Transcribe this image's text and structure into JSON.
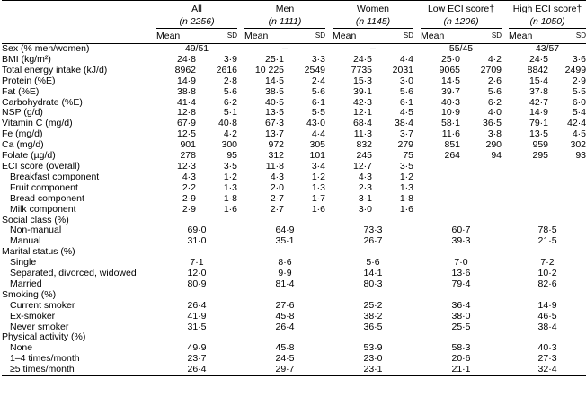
{
  "groups": [
    {
      "label": "All",
      "n": "(n 2256)"
    },
    {
      "label": "Men",
      "n": "(n 1111)"
    },
    {
      "label": "Women",
      "n": "(n 1145)"
    },
    {
      "label": "Low ECI score†",
      "n": "(n 1206)"
    },
    {
      "label": "High ECI score†",
      "n": "(n 1050)"
    }
  ],
  "stat_labels": {
    "mean": "Mean",
    "sd": "SD"
  },
  "rows": [
    {
      "type": "span",
      "label": "Sex (% men/women)",
      "values": [
        "49/51",
        "–",
        "–",
        "55/45",
        "43/57"
      ]
    },
    {
      "type": "pair",
      "label": "BMI (kg/m²)",
      "values": [
        [
          "24·8",
          "3·9"
        ],
        [
          "25·1",
          "3·3"
        ],
        [
          "24·5",
          "4·4"
        ],
        [
          "25·0",
          "4·2"
        ],
        [
          "24·5",
          "3·6"
        ]
      ]
    },
    {
      "type": "pair",
      "label": "Total energy intake (kJ/d)",
      "values": [
        [
          "8962",
          "2616"
        ],
        [
          "10 225",
          "2549"
        ],
        [
          "7735",
          "2031"
        ],
        [
          "9065",
          "2709"
        ],
        [
          "8842",
          "2499"
        ]
      ]
    },
    {
      "type": "pair",
      "label": "Protein (%E)",
      "values": [
        [
          "14·9",
          "2·8"
        ],
        [
          "14·5",
          "2·4"
        ],
        [
          "15·3",
          "3·0"
        ],
        [
          "14·5",
          "2·6"
        ],
        [
          "15·4",
          "2·9"
        ]
      ]
    },
    {
      "type": "pair",
      "label": "Fat (%E)",
      "values": [
        [
          "38·8",
          "5·6"
        ],
        [
          "38·5",
          "5·6"
        ],
        [
          "39·1",
          "5·6"
        ],
        [
          "39·7",
          "5·6"
        ],
        [
          "37·8",
          "5·5"
        ]
      ]
    },
    {
      "type": "pair",
      "label": "Carbohydrate (%E)",
      "values": [
        [
          "41·4",
          "6·2"
        ],
        [
          "40·5",
          "6·1"
        ],
        [
          "42·3",
          "6·1"
        ],
        [
          "40·3",
          "6·2"
        ],
        [
          "42·7",
          "6·0"
        ]
      ]
    },
    {
      "type": "pair",
      "label": "NSP (g/d)",
      "values": [
        [
          "12·8",
          "5·1"
        ],
        [
          "13·5",
          "5·5"
        ],
        [
          "12·1",
          "4·5"
        ],
        [
          "10·9",
          "4·0"
        ],
        [
          "14·9",
          "5·4"
        ]
      ]
    },
    {
      "type": "pair",
      "label": "Vitamin C (mg/d)",
      "values": [
        [
          "67·9",
          "40·8"
        ],
        [
          "67·3",
          "43·0"
        ],
        [
          "68·4",
          "38·4"
        ],
        [
          "58·1",
          "36·5"
        ],
        [
          "79·1",
          "42·4"
        ]
      ]
    },
    {
      "type": "pair",
      "label": "Fe (mg/d)",
      "values": [
        [
          "12·5",
          "4·2"
        ],
        [
          "13·7",
          "4·4"
        ],
        [
          "11·3",
          "3·7"
        ],
        [
          "11·6",
          "3·8"
        ],
        [
          "13·5",
          "4·5"
        ]
      ]
    },
    {
      "type": "pair",
      "label": "Ca (mg/d)",
      "values": [
        [
          "901",
          "300"
        ],
        [
          "972",
          "305"
        ],
        [
          "832",
          "279"
        ],
        [
          "851",
          "290"
        ],
        [
          "959",
          "302"
        ]
      ]
    },
    {
      "type": "pair",
      "label": "Folate (µg/d)",
      "values": [
        [
          "278",
          "95"
        ],
        [
          "312",
          "101"
        ],
        [
          "245",
          "75"
        ],
        [
          "264",
          "94"
        ],
        [
          "295",
          "93"
        ]
      ]
    },
    {
      "type": "pair",
      "label": "ECI score (overall)",
      "values": [
        [
          "12·3",
          "3·5"
        ],
        [
          "11·8",
          "3·4"
        ],
        [
          "12·7",
          "3·5"
        ],
        [
          "",
          ""
        ],
        [
          "",
          ""
        ]
      ]
    },
    {
      "type": "pair",
      "indent": true,
      "label": "Breakfast component",
      "values": [
        [
          "4·3",
          "1·2"
        ],
        [
          "4·3",
          "1·2"
        ],
        [
          "4·3",
          "1·2"
        ],
        [
          "",
          ""
        ],
        [
          "",
          ""
        ]
      ]
    },
    {
      "type": "pair",
      "indent": true,
      "label": "Fruit component",
      "values": [
        [
          "2·2",
          "1·3"
        ],
        [
          "2·0",
          "1·3"
        ],
        [
          "2·3",
          "1·3"
        ],
        [
          "",
          ""
        ],
        [
          "",
          ""
        ]
      ]
    },
    {
      "type": "pair",
      "indent": true,
      "label": "Bread component",
      "values": [
        [
          "2·9",
          "1·8"
        ],
        [
          "2·7",
          "1·7"
        ],
        [
          "3·1",
          "1·8"
        ],
        [
          "",
          ""
        ],
        [
          "",
          ""
        ]
      ]
    },
    {
      "type": "pair",
      "indent": true,
      "label": "Milk component",
      "values": [
        [
          "2·9",
          "1·6"
        ],
        [
          "2·7",
          "1·6"
        ],
        [
          "3·0",
          "1·6"
        ],
        [
          "",
          ""
        ],
        [
          "",
          ""
        ]
      ]
    },
    {
      "type": "heading",
      "label": "Social class (%)"
    },
    {
      "type": "pct",
      "indent": true,
      "label": "Non-manual",
      "values": [
        "69·0",
        "64·9",
        "73·3",
        "60·7",
        "78·5"
      ]
    },
    {
      "type": "pct",
      "indent": true,
      "label": "Manual",
      "values": [
        "31·0",
        "35·1",
        "26·7",
        "39·3",
        "21·5"
      ]
    },
    {
      "type": "heading",
      "label": "Marital status (%)"
    },
    {
      "type": "pct",
      "indent": true,
      "label": "Single",
      "values": [
        "7·1",
        "8·6",
        "5·6",
        "7·0",
        "7·2"
      ]
    },
    {
      "type": "pct",
      "indent": true,
      "label": "Separated, divorced, widowed",
      "values": [
        "12·0",
        "9·9",
        "14·1",
        "13·6",
        "10·2"
      ]
    },
    {
      "type": "pct",
      "indent": true,
      "label": "Married",
      "values": [
        "80·9",
        "81·4",
        "80·3",
        "79·4",
        "82·6"
      ]
    },
    {
      "type": "heading",
      "label": "Smoking (%)"
    },
    {
      "type": "pct",
      "indent": true,
      "label": "Current smoker",
      "values": [
        "26·4",
        "27·6",
        "25·2",
        "36·4",
        "14·9"
      ]
    },
    {
      "type": "pct",
      "indent": true,
      "label": "Ex-smoker",
      "values": [
        "41·9",
        "45·8",
        "38·2",
        "38·0",
        "46·5"
      ]
    },
    {
      "type": "pct",
      "indent": true,
      "label": "Never smoker",
      "values": [
        "31·5",
        "26·4",
        "36·5",
        "25·5",
        "38·4"
      ]
    },
    {
      "type": "heading",
      "label": "Physical activity (%)"
    },
    {
      "type": "pct",
      "indent": true,
      "label": "None",
      "values": [
        "49·9",
        "45·8",
        "53·9",
        "58·3",
        "40·3"
      ]
    },
    {
      "type": "pct",
      "indent": true,
      "label": "1–4 times/month",
      "values": [
        "23·7",
        "24·5",
        "23·0",
        "20·6",
        "27·3"
      ]
    },
    {
      "type": "pct",
      "indent": true,
      "label": "≥5 times/month",
      "values": [
        "26·4",
        "29·7",
        "23·1",
        "21·1",
        "32·4"
      ]
    }
  ]
}
